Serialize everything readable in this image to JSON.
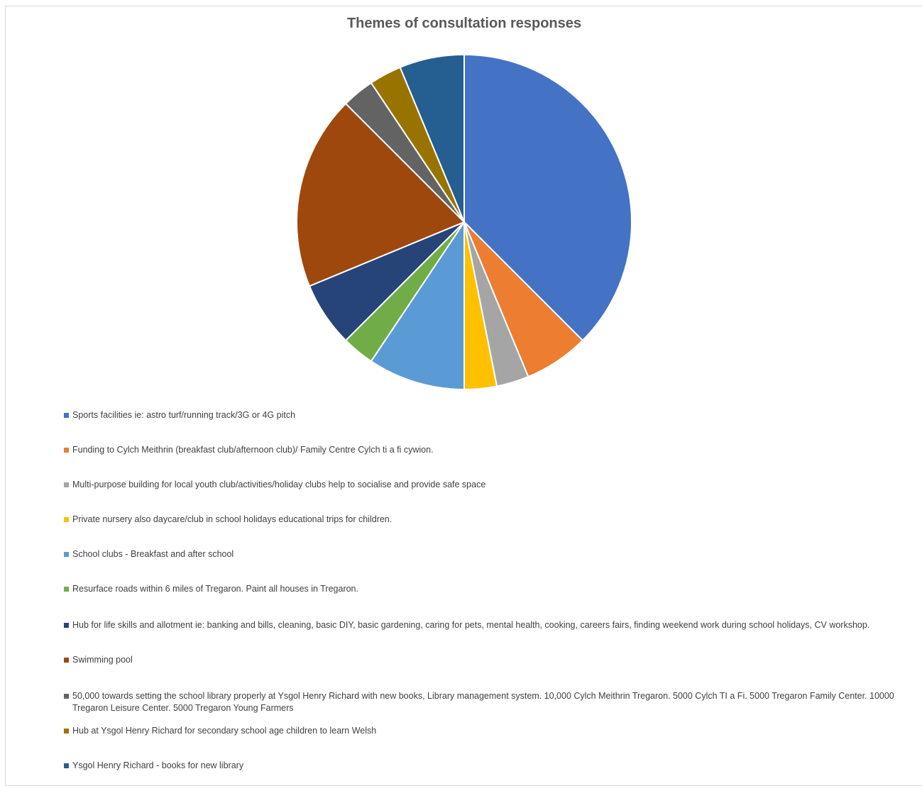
{
  "chart_data": {
    "type": "pie",
    "title": "Themes of consultation responses",
    "legend_position": "bottom",
    "slices": [
      {
        "label": "Sports facilities ie: astro turf/running track/3G or 4G pitch",
        "value": 12,
        "color": "#4472C4"
      },
      {
        "label": "Funding to Cylch Meithrin (breakfast club/afternoon club)/ Family Centre Cylch ti a fi cywion.",
        "value": 2,
        "color": "#ED7D31"
      },
      {
        "label": "Multi-purpose building for local youth club/activities/holiday clubs help to socialise and provide safe space",
        "value": 1,
        "color": "#A5A5A5"
      },
      {
        "label": "Private nursery also daycare/club in school holidays  educational trips for children.",
        "value": 1,
        "color": "#FFC000"
      },
      {
        "label": "School clubs - Breakfast and after school",
        "value": 3,
        "color": "#5B9BD5"
      },
      {
        "label": "Resurface roads within 6 miles of Tregaron. Paint all houses in Tregaron.",
        "value": 1,
        "color": "#70AD47"
      },
      {
        "label": "Hub for life skills and allotment ie: banking and bills,  cleaning, basic DIY, basic gardening, caring for pets, mental health, cooking, careers fairs, finding weekend work during school holidays, CV workshop.",
        "value": 2,
        "color": "#264478"
      },
      {
        "label": "Swimming pool",
        "value": 6,
        "color": "#9E480E"
      },
      {
        "label": "50,000 towards setting the school library properly at Ysgol Henry Richard with new books, Library management system. 10,000 Cylch Meithrin Tregaron. 5000 Cylch TI a Fi. 5000 Tregaron Family Center. 10000 Tregaron Leisure Center. 5000 Tregaron Young Farmers",
        "value": 1,
        "color": "#636363"
      },
      {
        "label": "Hub at Ysgol Henry Richard for secondary school age children to learn Welsh",
        "value": 1,
        "color": "#997300"
      },
      {
        "label": "Ysgol Henry Richard - books for new library",
        "value": 2,
        "color": "#255E91"
      }
    ]
  }
}
